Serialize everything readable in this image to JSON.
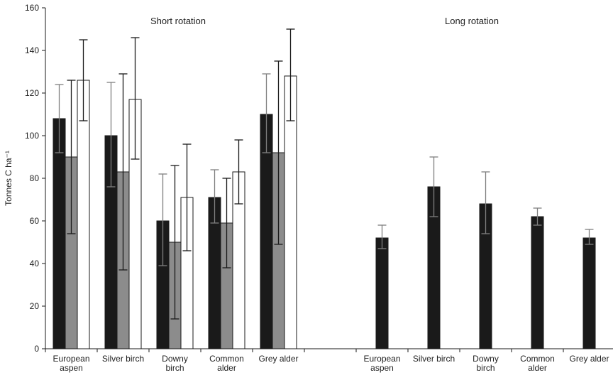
{
  "chart_data": {
    "type": "bar",
    "ylabel": "Tonnes C ha⁻¹",
    "ylim": [
      0,
      160
    ],
    "yticks": [
      0,
      20,
      40,
      60,
      80,
      100,
      120,
      140,
      160
    ],
    "grid": false,
    "colors": {
      "series1": "#1a1a1a",
      "series2": "#8c8c8c",
      "series3": "#ffffff",
      "outline": "#1a1a1a",
      "errbar_gray": "#7f7f7f"
    },
    "groups": [
      {
        "title": "Short rotation",
        "categories": [
          [
            "European",
            "aspen"
          ],
          [
            "Silver birch"
          ],
          [
            "Downy",
            "birch"
          ],
          [
            "Common",
            "alder"
          ],
          [
            "Grey alder"
          ]
        ],
        "series": [
          {
            "values": [
              108,
              100,
              60,
              71,
              110
            ],
            "err_low": [
              92,
              76,
              39,
              59,
              92
            ],
            "err_high": [
              124,
              125,
              82,
              84,
              129
            ]
          },
          {
            "values": [
              90,
              83,
              50,
              59,
              92
            ],
            "err_low": [
              54,
              37,
              14,
              38,
              49
            ],
            "err_high": [
              126,
              129,
              86,
              80,
              135
            ]
          },
          {
            "values": [
              126,
              117,
              71,
              83,
              128
            ],
            "err_low": [
              107,
              89,
              46,
              68,
              107
            ],
            "err_high": [
              145,
              146,
              96,
              98,
              150
            ]
          }
        ]
      },
      {
        "title": "Long rotation",
        "categories": [
          [
            "European",
            "aspen"
          ],
          [
            "Silver birch"
          ],
          [
            "Downy",
            "birch"
          ],
          [
            "Common",
            "alder"
          ],
          [
            "Grey alder"
          ]
        ],
        "series": [
          {
            "values": [
              52,
              76,
              68,
              62,
              52
            ],
            "err_low": [
              47,
              62,
              54,
              58,
              49
            ],
            "err_high": [
              58,
              90,
              83,
              66,
              56
            ]
          }
        ]
      }
    ]
  }
}
